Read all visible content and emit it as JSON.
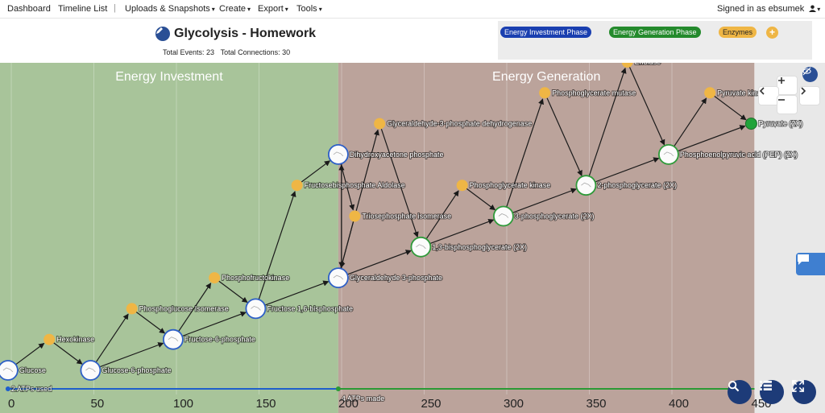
{
  "nav": {
    "dashboard": "Dashboard",
    "timeline_list": "Timeline List",
    "separator": "|",
    "uploads": "Uploads & Snapshots",
    "create": "Create",
    "export": "Export",
    "tools": "Tools",
    "signed_in": "Signed in as ebsumek",
    "caret": "▾"
  },
  "header": {
    "title": "Glycolysis - Homework",
    "total_events": "Total Events: 23",
    "total_connections": "Total Connections: 30"
  },
  "legend": {
    "items": [
      "Energy Investment Phase",
      "Energy Generation Phase",
      "Enzymes"
    ],
    "add": "+"
  },
  "colors": {
    "investment_bg": "#a8c49a",
    "generation_bg": "#bba39b",
    "enzyme": "#efb645",
    "node_stroke_blue": "#2d5fc7",
    "node_stroke_green": "#2f9a3a",
    "final_node": "#21a33a",
    "bar_blue": "#1f5fcc",
    "bar_green": "#2a9a35"
  },
  "regions": {
    "investment": "Energy Investment",
    "generation": "Energy Generation"
  },
  "bars": {
    "used": "2 ATPs used",
    "made": "4 ATPs made",
    "used_range": [
      -2,
      198
    ],
    "made_range": [
      198,
      450
    ]
  },
  "axis": {
    "ticks": [
      0,
      50,
      100,
      150,
      200,
      250,
      300,
      350,
      400,
      450
    ],
    "labels": [
      "0",
      "50",
      "100",
      "150",
      "200",
      "250",
      "300",
      "350",
      "400",
      "450"
    ]
  },
  "nodes": [
    {
      "label": "Glucose",
      "t": -2,
      "level": 0,
      "kind": "molecule",
      "phase": "investment"
    },
    {
      "label": "Hexokinase",
      "t": 23,
      "level": 1,
      "kind": "enzyme"
    },
    {
      "label": "Glucose-6-phosphate",
      "t": 48,
      "level": 0,
      "kind": "molecule",
      "phase": "investment"
    },
    {
      "label": "Phosphoglucose Isomerase",
      "t": 73,
      "level": 2,
      "kind": "enzyme"
    },
    {
      "label": "Fructose-6-phosphate",
      "t": 98,
      "level": 1,
      "kind": "molecule",
      "phase": "investment"
    },
    {
      "label": "Phosphofructokinase",
      "t": 123,
      "level": 3,
      "kind": "enzyme"
    },
    {
      "label": "Fructose 1,6-bisphosphate",
      "t": 148,
      "level": 2,
      "kind": "molecule",
      "phase": "investment"
    },
    {
      "label": "Fructosebisphosphate Aldolase",
      "t": 173,
      "level": 6,
      "kind": "enzyme"
    },
    {
      "label": "Dihydroxyacetone phosphate",
      "t": 198,
      "level": 7,
      "kind": "molecule",
      "phase": "investment"
    },
    {
      "label": "Glyceraldehyde 3-phosphate",
      "t": 198,
      "level": 3,
      "kind": "molecule",
      "phase": "investment"
    },
    {
      "label": "Triosephosphate isomerase",
      "t": 208,
      "level": 5,
      "kind": "enzyme"
    },
    {
      "label": "Glyceraldehyde-3-phosphate dehydrogenase",
      "t": 223,
      "level": 8,
      "kind": "enzyme"
    },
    {
      "label": "1,3-bisphosphoglycerate (2X)",
      "t": 248,
      "level": 4,
      "kind": "molecule",
      "phase": "generation"
    },
    {
      "label": "Phosphoglycerate kinase",
      "t": 273,
      "level": 6,
      "kind": "enzyme"
    },
    {
      "label": "3-phosphoglycerate (2X)",
      "t": 298,
      "level": 5,
      "kind": "molecule",
      "phase": "generation"
    },
    {
      "label": "Phosphoglycerate mutase",
      "t": 323,
      "level": 9,
      "kind": "enzyme"
    },
    {
      "label": "2-phosphoglycerate (2X)",
      "t": 348,
      "level": 6,
      "kind": "molecule",
      "phase": "generation"
    },
    {
      "label": "Enolase",
      "t": 373,
      "level": 10,
      "kind": "enzyme"
    },
    {
      "label": "Phosphoenolpyruvic acid (PEP) (2X)",
      "t": 398,
      "level": 7,
      "kind": "molecule",
      "phase": "generation"
    },
    {
      "label": "Pyruvate kinase",
      "t": 423,
      "level": 9,
      "kind": "enzyme"
    },
    {
      "label": "Pyruvate (2X)",
      "t": 448,
      "level": 8,
      "kind": "final",
      "phase": "generation"
    }
  ],
  "edges": [
    [
      0,
      1
    ],
    [
      1,
      2
    ],
    [
      2,
      3
    ],
    [
      3,
      4
    ],
    [
      2,
      4
    ],
    [
      4,
      5
    ],
    [
      5,
      6
    ],
    [
      4,
      6
    ],
    [
      6,
      7
    ],
    [
      7,
      8
    ],
    [
      6,
      9
    ],
    [
      8,
      9
    ],
    [
      9,
      8
    ],
    [
      8,
      10
    ],
    [
      10,
      9
    ],
    [
      9,
      11
    ],
    [
      11,
      12
    ],
    [
      9,
      12
    ],
    [
      12,
      13
    ],
    [
      13,
      14
    ],
    [
      12,
      14
    ],
    [
      14,
      15
    ],
    [
      15,
      16
    ],
    [
      14,
      16
    ],
    [
      16,
      17
    ],
    [
      17,
      18
    ],
    [
      16,
      18
    ],
    [
      18,
      19
    ],
    [
      19,
      20
    ],
    [
      18,
      20
    ]
  ]
}
